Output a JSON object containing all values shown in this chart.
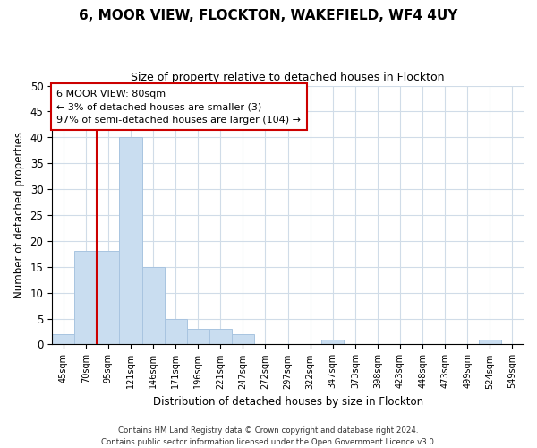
{
  "title": "6, MOOR VIEW, FLOCKTON, WAKEFIELD, WF4 4UY",
  "subtitle": "Size of property relative to detached houses in Flockton",
  "xlabel": "Distribution of detached houses by size in Flockton",
  "ylabel": "Number of detached properties",
  "bar_labels": [
    "45sqm",
    "70sqm",
    "95sqm",
    "121sqm",
    "146sqm",
    "171sqm",
    "196sqm",
    "221sqm",
    "247sqm",
    "272sqm",
    "297sqm",
    "322sqm",
    "347sqm",
    "373sqm",
    "398sqm",
    "423sqm",
    "448sqm",
    "473sqm",
    "499sqm",
    "524sqm",
    "549sqm"
  ],
  "bar_values": [
    2,
    18,
    18,
    40,
    15,
    5,
    3,
    3,
    2,
    0,
    0,
    0,
    1,
    0,
    0,
    0,
    0,
    0,
    0,
    1,
    0
  ],
  "bar_color": "#c9ddf0",
  "bar_edge_color": "#a8c4e0",
  "ylim": [
    0,
    50
  ],
  "yticks": [
    0,
    5,
    10,
    15,
    20,
    25,
    30,
    35,
    40,
    45,
    50
  ],
  "property_line_x": 1.5,
  "property_line_color": "#cc0000",
  "annotation_title": "6 MOOR VIEW: 80sqm",
  "annotation_line1": "← 3% of detached houses are smaller (3)",
  "annotation_line2": "97% of semi-detached houses are larger (104) →",
  "annotation_box_color": "#ffffff",
  "annotation_box_edge_color": "#cc0000",
  "footer_line1": "Contains HM Land Registry data © Crown copyright and database right 2024.",
  "footer_line2": "Contains public sector information licensed under the Open Government Licence v3.0.",
  "background_color": "#ffffff",
  "grid_color": "#d0dce8"
}
